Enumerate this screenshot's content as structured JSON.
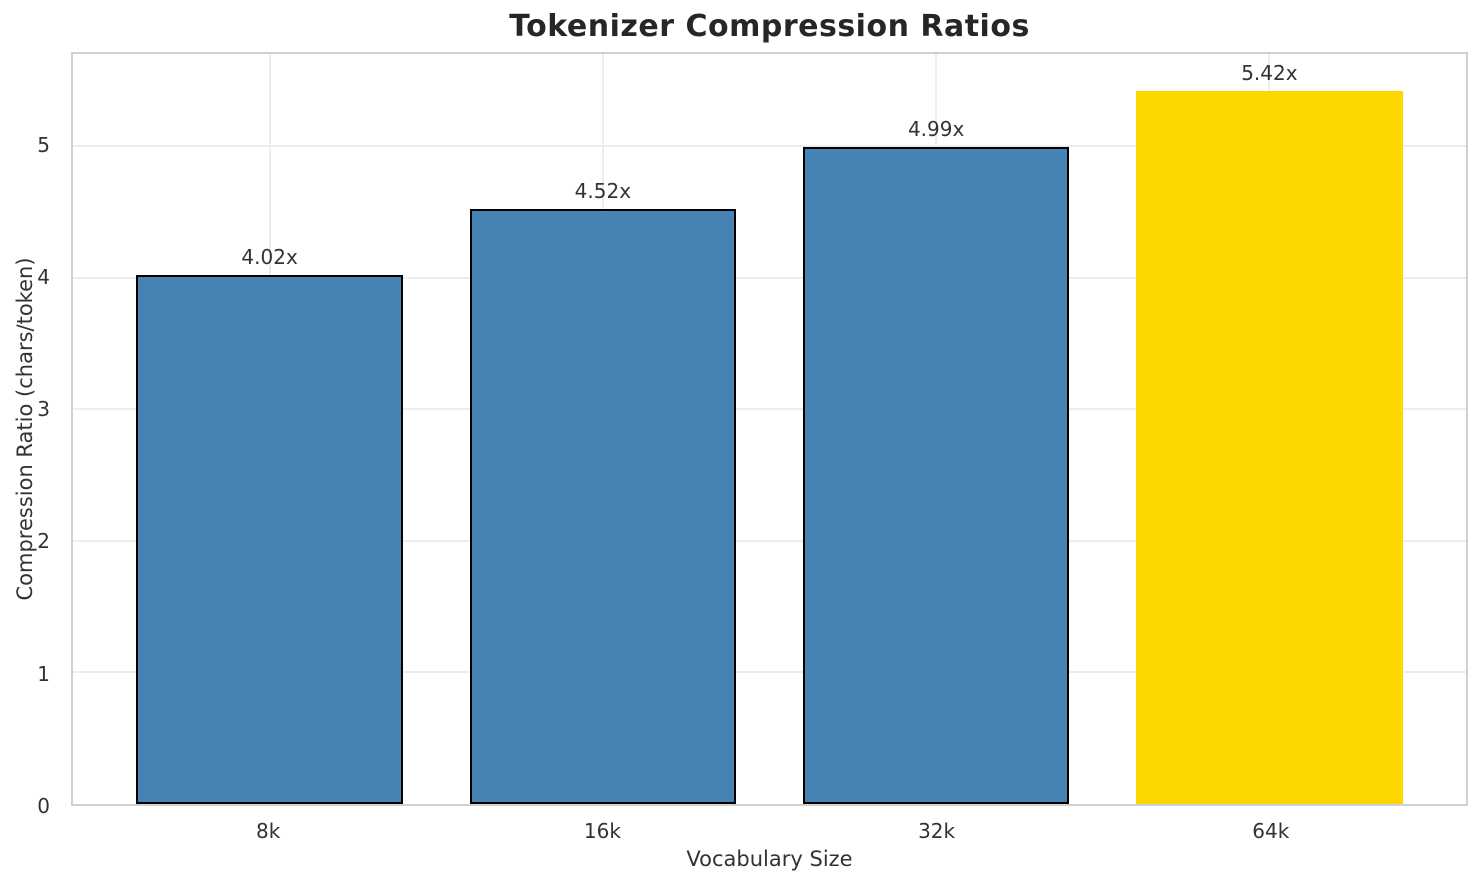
{
  "chart_data": {
    "type": "bar",
    "title": "Tokenizer Compression Ratios",
    "xlabel": "Vocabulary Size",
    "ylabel": "Compression Ratio (chars/token)",
    "categories": [
      "8k",
      "16k",
      "32k",
      "64k"
    ],
    "values": [
      4.02,
      4.52,
      4.99,
      5.42
    ],
    "bar_labels": [
      "4.02x",
      "4.52x",
      "4.99x",
      "5.42x"
    ],
    "yticks": [
      0,
      1,
      2,
      3,
      4,
      5
    ],
    "ylim": [
      0,
      5.7
    ],
    "xlim": [
      -0.59,
      3.59
    ],
    "bar_width": 0.8,
    "grid": true,
    "legend": "none",
    "colors": {
      "background": "#ffffff",
      "bar_colors": [
        "#4682B4",
        "#4682B4",
        "#4682B4",
        "#FFD700"
      ],
      "bar_edge_colors": [
        "#000000",
        "#000000",
        "#000000",
        "none"
      ],
      "grid": "#ededed",
      "spine": "#d0d0d0",
      "title": "#262626",
      "text": "#333333"
    }
  }
}
